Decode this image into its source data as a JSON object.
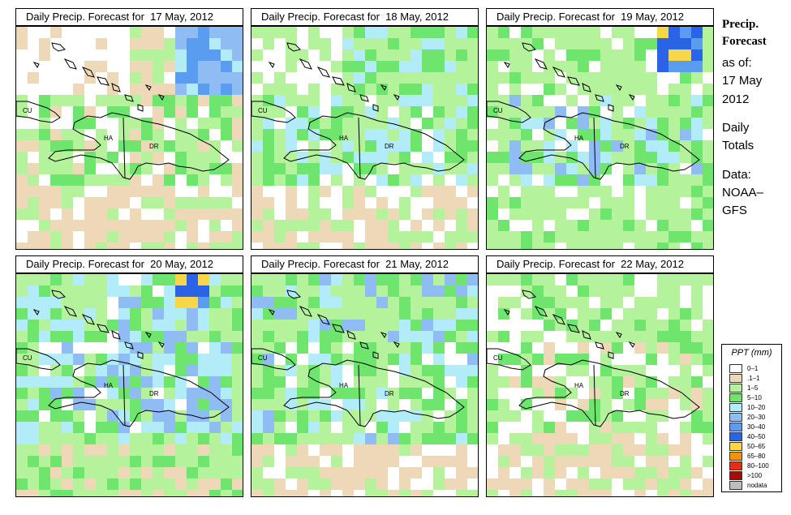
{
  "panels": [
    {
      "title": "Daily Precip. Forecast for  17 May, 2012",
      "seed": 17
    },
    {
      "title": "Daily Precip. Forecast for  18 May, 2012",
      "seed": 18
    },
    {
      "title": "Daily Precip. Forecast for  19 May, 2012",
      "seed": 19
    },
    {
      "title": "Daily Precip. Forecast for  20 May, 2012",
      "seed": 20
    },
    {
      "title": "Daily Precip. Forecast for  21 May, 2012",
      "seed": 21
    },
    {
      "title": "Daily Precip. Forecast for  22 May, 2012",
      "seed": 22
    }
  ],
  "map_labels": {
    "cuba": "CU",
    "haiti": "HA",
    "dominican_republic": "DR"
  },
  "sidebar": {
    "title_line1": "Precip.",
    "title_line2": "Forecast",
    "asof_label": "as of:",
    "date_line1": "17 May",
    "date_line2": "2012",
    "totals_line1": "Daily",
    "totals_line2": "Totals",
    "data_line1": "Data:",
    "data_line2": "NOAA–",
    "data_line3": "GFS"
  },
  "legend": {
    "title": "PPT (mm)",
    "items": [
      {
        "label": "0–1",
        "color": "#ffffff"
      },
      {
        "label": ".1–1",
        "color": "#edd8b7"
      },
      {
        "label": "1–5",
        "color": "#b5f29c"
      },
      {
        "label": "5–10",
        "color": "#6ee66e"
      },
      {
        "label": "10–20",
        "color": "#b2ecf8"
      },
      {
        "label": "20–30",
        "color": "#8fbcf2"
      },
      {
        "label": "30–40",
        "color": "#5a9df0"
      },
      {
        "label": "40–50",
        "color": "#2a64e6"
      },
      {
        "label": "50–65",
        "color": "#f8d64a"
      },
      {
        "label": "65–80",
        "color": "#f2940a"
      },
      {
        "label": "80–100",
        "color": "#e43010"
      },
      {
        "label": ">100",
        "color": "#a01008"
      },
      {
        "label": "nodata",
        "color": "#bdbdbd"
      }
    ]
  }
}
